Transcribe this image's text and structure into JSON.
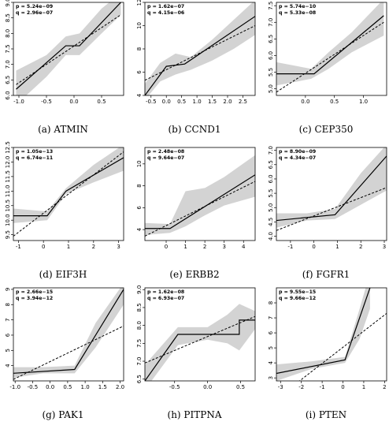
{
  "figure": {
    "panels": [
      {
        "caption": "(a) ATMIN",
        "p": "p = 5.24e−09",
        "q": "q = 2.96e−07",
        "xlim": [
          -1.1,
          0.9
        ],
        "ylim": [
          6.0,
          9.0
        ],
        "xticks": [
          "-1.0",
          "-0.5",
          "0.0",
          "0.5"
        ],
        "xtick_vals": [
          -1.0,
          -0.5,
          0.0,
          0.5
        ],
        "yticks": [
          "6.0",
          "6.5",
          "7.0",
          "7.5",
          "8.0",
          "8.5",
          "9.0"
        ],
        "ytick_vals": [
          6.0,
          6.5,
          7.0,
          7.5,
          8.0,
          8.5,
          9.0
        ],
        "seg_fit": [
          [
            -1.05,
            6.2
          ],
          [
            -0.15,
            7.6
          ],
          [
            0.1,
            7.6
          ],
          [
            0.85,
            9.0
          ]
        ],
        "lin_fit": [
          [
            -1.05,
            6.35
          ],
          [
            0.85,
            8.6
          ]
        ],
        "band": [
          [
            -1.05,
            5.7,
            6.8
          ],
          [
            -0.5,
            6.6,
            7.3
          ],
          [
            -0.15,
            7.3,
            7.9
          ],
          [
            0.1,
            7.3,
            8.0
          ],
          [
            0.5,
            8.0,
            8.8
          ],
          [
            0.85,
            8.6,
            9.3
          ]
        ]
      },
      {
        "caption": "(b) CCND1",
        "p": "p = 1.62e−07",
        "q": "q = 4.15e−06",
        "xlim": [
          -0.7,
          2.9
        ],
        "ylim": [
          4.0,
          12.0
        ],
        "xticks": [
          "-0.5",
          "0.0",
          "0.5",
          "1.0",
          "1.5",
          "2.0",
          "2.5"
        ],
        "xtick_vals": [
          -0.5,
          0.0,
          0.5,
          1.0,
          1.5,
          2.0,
          2.5
        ],
        "yticks": [
          "4",
          "6",
          "8",
          "10",
          "12"
        ],
        "ytick_vals": [
          4,
          6,
          8,
          10,
          12
        ],
        "seg_fit": [
          [
            -0.7,
            4.0
          ],
          [
            0.0,
            6.5
          ],
          [
            0.6,
            6.7
          ],
          [
            2.9,
            10.8
          ]
        ],
        "lin_fit": [
          [
            -0.7,
            5.3
          ],
          [
            2.9,
            10.0
          ]
        ],
        "band": [
          [
            -0.7,
            3.6,
            5.0
          ],
          [
            -0.2,
            5.2,
            6.8
          ],
          [
            0.3,
            5.8,
            7.6
          ],
          [
            0.8,
            6.2,
            7.3
          ],
          [
            1.5,
            7.0,
            8.8
          ],
          [
            2.2,
            8.0,
            10.5
          ],
          [
            2.9,
            9.2,
            12.2
          ]
        ]
      },
      {
        "caption": "(c) CEP350",
        "p": "p = 5.74e−10",
        "q": "q = 5.33e−08",
        "xlim": [
          -0.5,
          1.4
        ],
        "ylim": [
          4.8,
          7.6
        ],
        "xticks": [
          "0.0",
          "0.5",
          "1.0"
        ],
        "xtick_vals": [
          0.0,
          0.5,
          1.0
        ],
        "yticks": [
          "5.0",
          "5.5",
          "6.0",
          "6.5",
          "7.0",
          "7.5"
        ],
        "ytick_vals": [
          5.0,
          5.5,
          6.0,
          6.5,
          7.0,
          7.5
        ],
        "seg_fit": [
          [
            -0.5,
            5.45
          ],
          [
            0.15,
            5.45
          ],
          [
            1.35,
            7.2
          ]
        ],
        "lin_fit": [
          [
            -0.5,
            4.9
          ],
          [
            1.35,
            7.0
          ]
        ],
        "band": [
          [
            -0.5,
            5.1,
            5.8
          ],
          [
            0.1,
            5.3,
            5.6
          ],
          [
            0.4,
            5.6,
            6.1
          ],
          [
            0.8,
            6.1,
            6.7
          ],
          [
            1.35,
            6.6,
            7.7
          ]
        ]
      },
      {
        "caption": "(d) EIF3H",
        "p": "p = 1.05e−13",
        "q": "q = 6.74e−11",
        "xlim": [
          -1.2,
          3.2
        ],
        "ylim": [
          9.3,
          12.5
        ],
        "xticks": [
          "-1",
          "0",
          "1",
          "2",
          "3"
        ],
        "xtick_vals": [
          -1,
          0,
          1,
          2,
          3
        ],
        "yticks": [
          "9.5",
          "10.0",
          "10.5",
          "11.0",
          "11.5",
          "12.0",
          "12.5"
        ],
        "ytick_vals": [
          9.5,
          10.0,
          10.5,
          11.0,
          11.5,
          12.0,
          12.5
        ],
        "seg_fit": [
          [
            -1.2,
            10.15
          ],
          [
            0.15,
            10.15
          ],
          [
            0.9,
            11.0
          ],
          [
            3.2,
            12.15
          ]
        ],
        "lin_fit": [
          [
            -1.2,
            9.45
          ],
          [
            3.2,
            12.35
          ]
        ],
        "band": [
          [
            -1.2,
            9.9,
            10.4
          ],
          [
            0.15,
            10.0,
            10.3
          ],
          [
            0.9,
            10.9,
            11.1
          ],
          [
            2.0,
            11.3,
            11.9
          ],
          [
            3.2,
            11.7,
            12.6
          ]
        ]
      },
      {
        "caption": "(e) ERBB2",
        "p": "p = 2.48e−08",
        "q": "q = 9.64e−07",
        "xlim": [
          -1.1,
          4.6
        ],
        "ylim": [
          3.0,
          11.5
        ],
        "xticks": [
          "0",
          "1",
          "2",
          "3",
          "4"
        ],
        "xtick_vals": [
          0,
          1,
          2,
          3,
          4
        ],
        "yticks": [
          "4",
          "6",
          "8",
          "10"
        ],
        "ytick_vals": [
          4,
          6,
          8,
          10
        ],
        "seg_fit": [
          [
            -1.1,
            4.1
          ],
          [
            0.2,
            4.1
          ],
          [
            4.6,
            9.0
          ]
        ],
        "lin_fit": [
          [
            -1.1,
            3.4
          ],
          [
            4.6,
            8.4
          ]
        ],
        "band": [
          [
            -1.1,
            3.5,
            4.6
          ],
          [
            0.2,
            3.7,
            4.5
          ],
          [
            1.0,
            4.3,
            7.5
          ],
          [
            2.0,
            5.3,
            7.8
          ],
          [
            3.0,
            6.2,
            8.8
          ],
          [
            4.6,
            7.0,
            10.8
          ]
        ]
      },
      {
        "caption": "(f) FGFR1",
        "p": "p = 8.90e−09",
        "q": "q = 4.34e−07",
        "xlim": [
          -1.6,
          3.1
        ],
        "ylim": [
          3.85,
          7.1
        ],
        "xticks": [
          "-1",
          "0",
          "1",
          "2",
          "3"
        ],
        "xtick_vals": [
          -1,
          0,
          1,
          2,
          3
        ],
        "yticks": [
          "4.0",
          "4.5",
          "5.0",
          "5.5",
          "6.0",
          "6.5",
          "7.0"
        ],
        "ytick_vals": [
          4.0,
          4.5,
          5.0,
          5.5,
          6.0,
          6.5,
          7.0
        ],
        "seg_fit": [
          [
            -1.6,
            4.55
          ],
          [
            0.9,
            4.75
          ],
          [
            3.1,
            6.8
          ]
        ],
        "lin_fit": [
          [
            -1.6,
            4.2
          ],
          [
            3.1,
            5.7
          ]
        ],
        "band": [
          [
            -1.6,
            4.3,
            4.8
          ],
          [
            -0.3,
            4.55,
            4.8
          ],
          [
            0.9,
            4.6,
            4.95
          ],
          [
            2.0,
            5.1,
            6.2
          ],
          [
            3.1,
            5.6,
            7.2
          ]
        ]
      },
      {
        "caption": "(g) PAK1",
        "p": "p = 2.66e−15",
        "q": "q = 3.94e−12",
        "xlim": [
          -1.05,
          2.1
        ],
        "ylim": [
          3.0,
          9.1
        ],
        "xticks": [
          "-1.0",
          "-0.5",
          "0.0",
          "0.5",
          "1.0",
          "1.5",
          "2.0"
        ],
        "xtick_vals": [
          -1.0,
          -0.5,
          0.0,
          0.5,
          1.0,
          1.5,
          2.0
        ],
        "yticks": [
          "4",
          "5",
          "6",
          "7",
          "8",
          "9"
        ],
        "ytick_vals": [
          4,
          5,
          6,
          7,
          8,
          9
        ],
        "seg_fit": [
          [
            -1.05,
            3.5
          ],
          [
            0.7,
            3.75
          ],
          [
            2.1,
            9.0
          ]
        ],
        "lin_fit": [
          [
            -1.05,
            3.1
          ],
          [
            2.1,
            6.6
          ]
        ],
        "band": [
          [
            -1.05,
            3.2,
            3.9
          ],
          [
            -0.2,
            3.5,
            3.9
          ],
          [
            0.7,
            3.5,
            4.0
          ],
          [
            1.3,
            5.2,
            6.8
          ],
          [
            2.1,
            8.0,
            9.4
          ]
        ]
      },
      {
        "caption": "(h) PITPNA",
        "p": "p = 1.62e−08",
        "q": "q = 6.93e−07",
        "xlim": [
          -0.95,
          0.72
        ],
        "ylim": [
          6.45,
          9.05
        ],
        "xticks": [
          "-0.5",
          "0.0",
          "0.5"
        ],
        "xtick_vals": [
          -0.5,
          0.0,
          0.5
        ],
        "yticks": [
          "6.5",
          "7.0",
          "7.5",
          "8.0",
          "8.5",
          "9.0"
        ],
        "ytick_vals": [
          6.5,
          7.0,
          7.5,
          8.0,
          8.5,
          9.0
        ],
        "seg_fit": [
          [
            -0.95,
            6.45
          ],
          [
            -0.45,
            7.75
          ],
          [
            0.0,
            7.75
          ],
          [
            0.0,
            7.75
          ],
          [
            0.48,
            7.75
          ],
          [
            0.48,
            8.15
          ],
          [
            0.72,
            8.15
          ]
        ],
        "lin_fit": [
          [
            -0.95,
            6.95
          ],
          [
            0.72,
            8.25
          ]
        ],
        "band": [
          [
            -0.95,
            6.2,
            6.9
          ],
          [
            -0.45,
            7.45,
            7.95
          ],
          [
            0.0,
            7.6,
            7.95
          ],
          [
            0.3,
            7.5,
            8.3
          ],
          [
            0.48,
            7.3,
            8.6
          ],
          [
            0.72,
            7.9,
            8.4
          ]
        ]
      },
      {
        "caption": "(i) PTEN",
        "p": "p = 9.55e−15",
        "q": "q = 9.66e−12",
        "xlim": [
          -3.2,
          2.1
        ],
        "ylim": [
          2.8,
          9.0
        ],
        "xticks": [
          "-3",
          "-2",
          "-1",
          "0",
          "1",
          "2"
        ],
        "xtick_vals": [
          -3,
          -2,
          -1,
          0,
          1,
          2
        ],
        "yticks": [
          "3",
          "4",
          "5",
          "6",
          "7",
          "8"
        ],
        "ytick_vals": [
          3,
          4,
          5,
          6,
          7,
          8
        ],
        "seg_fit": [
          [
            -3.2,
            3.3
          ],
          [
            0.1,
            4.2
          ],
          [
            1.3,
            9.0
          ]
        ],
        "lin_fit": [
          [
            -3.2,
            1.6
          ],
          [
            2.1,
            7.3
          ]
        ],
        "band": [
          [
            -3.2,
            2.8,
            3.9
          ],
          [
            -1.5,
            3.6,
            4.1
          ],
          [
            0.1,
            4.0,
            4.4
          ],
          [
            0.8,
            5.6,
            7.6
          ],
          [
            1.3,
            7.6,
            10.0
          ]
        ]
      }
    ]
  }
}
